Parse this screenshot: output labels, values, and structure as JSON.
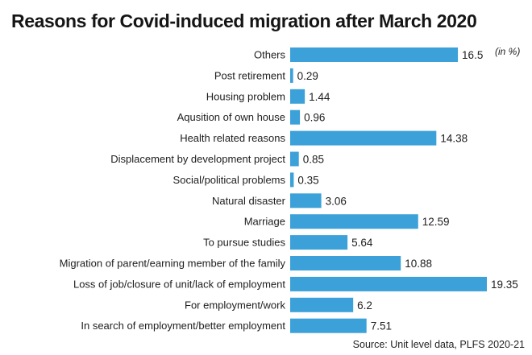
{
  "chart_data": {
    "type": "bar",
    "orientation": "horizontal",
    "title": "Reasons for Covid-induced migration after March 2020",
    "unit_note": "(in %)",
    "source": "Source: Unit level data, PLFS 2020-21",
    "bar_color": "#3ba1d8",
    "grid": false,
    "xlim": [
      0,
      19.35
    ],
    "categories": [
      "Others",
      "Post retirement",
      "Housing problem",
      "Aqusition of own house",
      "Health related reasons",
      "Displacement by development project",
      "Social/political problems",
      "Natural disaster",
      "Marriage",
      "To pursue studies",
      "Migration of parent/earning member of the family",
      "Loss of job/closure of unit/lack of employment",
      "For employment/work",
      "In search of employment/better employment"
    ],
    "values": [
      16.5,
      0.29,
      1.44,
      0.96,
      14.38,
      0.85,
      0.35,
      3.06,
      12.59,
      5.64,
      10.88,
      19.35,
      6.2,
      7.51
    ],
    "value_labels": [
      "16.5",
      "0.29",
      "1.44",
      "0.96",
      "14.38",
      "0.85",
      "0.35",
      "3.06",
      "12.59",
      "5.64",
      "10.88",
      "19.35",
      "6.2",
      "7.51"
    ]
  }
}
